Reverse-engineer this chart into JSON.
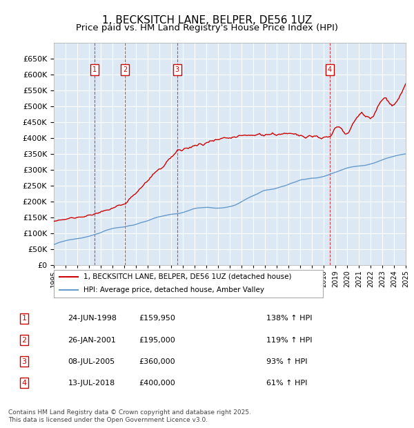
{
  "title": "1, BECKSITCH LANE, BELPER, DE56 1UZ",
  "subtitle": "Price paid vs. HM Land Registry's House Price Index (HPI)",
  "xlabel": "",
  "ylabel": "",
  "ylim": [
    0,
    700000
  ],
  "yticks": [
    0,
    50000,
    100000,
    150000,
    200000,
    250000,
    300000,
    350000,
    400000,
    450000,
    500000,
    550000,
    600000,
    650000
  ],
  "ytick_labels": [
    "£0",
    "£50K",
    "£100K",
    "£150K",
    "£200K",
    "£250K",
    "£300K",
    "£350K",
    "£400K",
    "£450K",
    "£500K",
    "£550K",
    "£600K",
    "£650K"
  ],
  "background_color": "#ffffff",
  "plot_bg_color": "#dce9f5",
  "grid_color": "#ffffff",
  "sale_dates": [
    "1998-06-24",
    "2001-01-26",
    "2005-07-08",
    "2018-07-13"
  ],
  "sale_prices": [
    159950,
    195000,
    360000,
    400000
  ],
  "sale_labels": [
    "1",
    "2",
    "3",
    "4"
  ],
  "sale_label_color": "#cc0000",
  "hpi_line_color": "#6699cc",
  "price_line_color": "#cc0000",
  "legend_entries": [
    "1, BECKSITCH LANE, BELPER, DE56 1UZ (detached house)",
    "HPI: Average price, detached house, Amber Valley"
  ],
  "table_data": [
    [
      "1",
      "24-JUN-1998",
      "£159,950",
      "138% ↑ HPI"
    ],
    [
      "2",
      "26-JAN-2001",
      "£195,000",
      "119% ↑ HPI"
    ],
    [
      "3",
      "08-JUL-2005",
      "£360,000",
      "93% ↑ HPI"
    ],
    [
      "4",
      "13-JUL-2018",
      "£400,000",
      "61% ↑ HPI"
    ]
  ],
  "footer": "Contains HM Land Registry data © Crown copyright and database right 2025.\nThis data is licensed under the Open Government Licence v3.0.",
  "title_fontsize": 11,
  "subtitle_fontsize": 9.5
}
